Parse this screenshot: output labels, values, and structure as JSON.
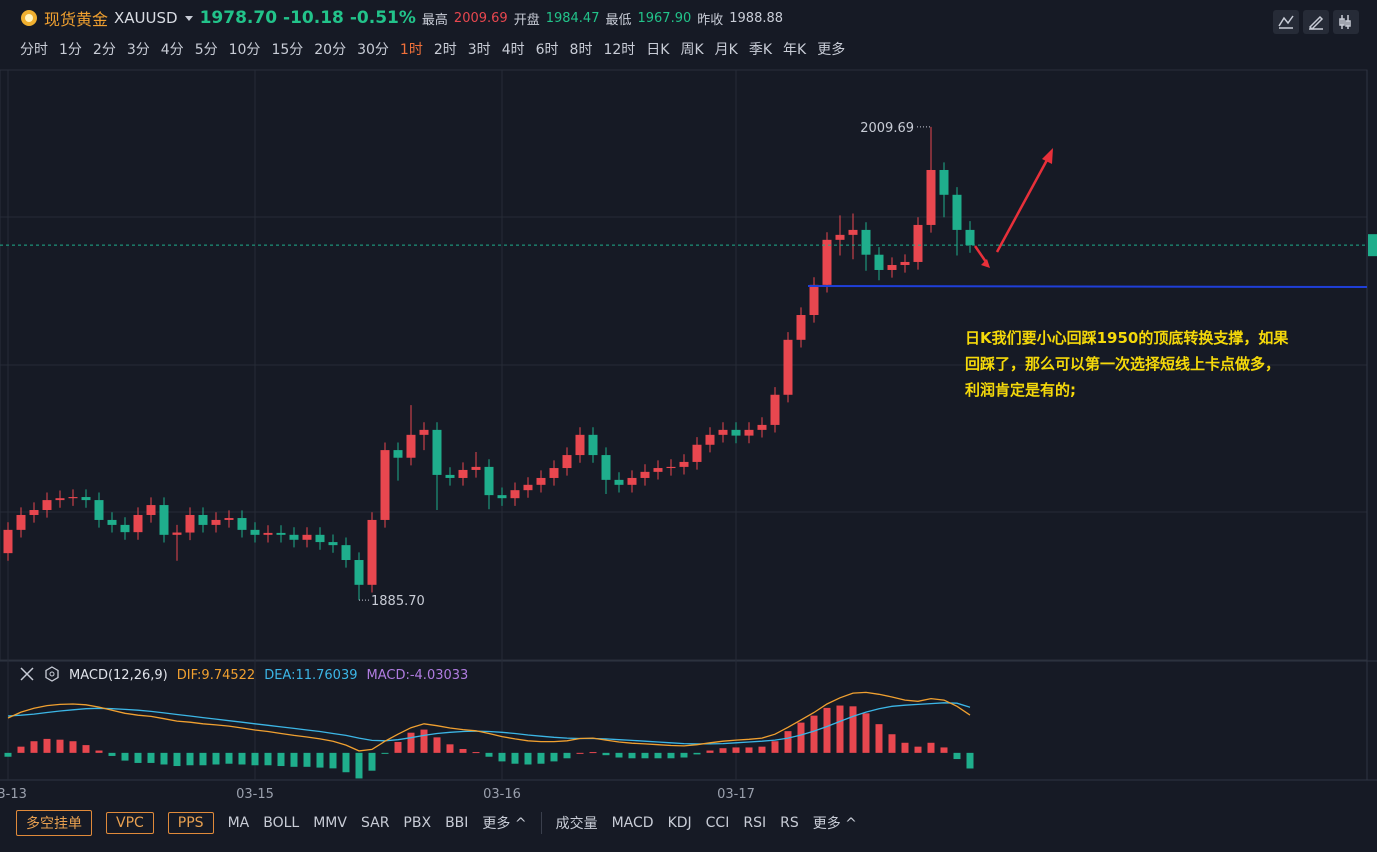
{
  "header": {
    "name": "现货黄金",
    "symbol": "XAUUSD",
    "price": "1978.70",
    "change": "-10.18",
    "change_pct": "-0.51%",
    "stats": [
      {
        "key": "最高",
        "value": "2009.69",
        "dir": "up"
      },
      {
        "key": "开盘",
        "value": "1984.47",
        "dir": "down"
      },
      {
        "key": "最低",
        "value": "1967.90",
        "dir": "down"
      },
      {
        "key": "昨收",
        "value": "1988.88",
        "dir": "none"
      }
    ]
  },
  "timeframes": [
    "分时",
    "1分",
    "2分",
    "3分",
    "4分",
    "5分",
    "10分",
    "15分",
    "20分",
    "30分",
    "1时",
    "2时",
    "3时",
    "4时",
    "6时",
    "8时",
    "12时",
    "日K",
    "周K",
    "月K",
    "季K",
    "年K",
    "更多"
  ],
  "active_timeframe_index": 10,
  "toolbar": {
    "buttons": [
      "多空挂单",
      "VPC",
      "PPS"
    ],
    "main_indicators": [
      "MA",
      "BOLL",
      "MMV",
      "SAR",
      "PBX",
      "BBI",
      "更多 ^"
    ],
    "sub_indicators": [
      "成交量",
      "MACD",
      "KDJ",
      "CCI",
      "RSI",
      "RS",
      "更多 ^"
    ]
  },
  "chart_data": {
    "type": "candlestick",
    "up_color": "#e8474f",
    "down_color": "#1fae8c",
    "ylim": [
      1870.0,
      2024.6
    ],
    "categories": [
      "03-13",
      null,
      null,
      null,
      null,
      null,
      null,
      null,
      null,
      null,
      null,
      null,
      null,
      null,
      null,
      null,
      null,
      null,
      null,
      "03-15",
      null,
      null,
      null,
      null,
      null,
      null,
      null,
      null,
      null,
      null,
      null,
      null,
      null,
      null,
      null,
      null,
      null,
      null,
      "03-16",
      null,
      null,
      null,
      null,
      null,
      null,
      null,
      null,
      null,
      null,
      null,
      null,
      null,
      null,
      null,
      null,
      null,
      "03-17",
      null,
      null,
      null,
      null,
      null,
      null,
      null,
      null,
      null,
      null,
      null,
      null,
      null,
      null,
      null,
      null,
      null,
      null
    ],
    "ohlc": [
      [
        1898,
        1906.1,
        1896,
        1904.1
      ],
      [
        1904.1,
        1910.0,
        1902.1,
        1908.0
      ],
      [
        1908.0,
        1911.3,
        1906.0,
        1909.3
      ],
      [
        1909.3,
        1913.9,
        1907.3,
        1911.9
      ],
      [
        1911.9,
        1914.4,
        1909.9,
        1912.4
      ],
      [
        1912.4,
        1914.7,
        1910.4,
        1912.7
      ],
      [
        1912.7,
        1914.7,
        1909.9,
        1911.9
      ],
      [
        1911.9,
        1913.9,
        1904.7,
        1906.7
      ],
      [
        1906.7,
        1908.7,
        1903.4,
        1905.4
      ],
      [
        1905.4,
        1907.4,
        1901.5,
        1903.5
      ],
      [
        1903.5,
        1910.0,
        1901.5,
        1908.0
      ],
      [
        1908.0,
        1912.6,
        1906.0,
        1910.6
      ],
      [
        1910.6,
        1912.6,
        1900.8,
        1902.8
      ],
      [
        1902.8,
        1905.4,
        1896,
        1903.4
      ],
      [
        1903.4,
        1910.0,
        1901.4,
        1908.0
      ],
      [
        1908.0,
        1910.0,
        1903.4,
        1905.4
      ],
      [
        1905.4,
        1908.7,
        1903.4,
        1906.7
      ],
      [
        1906.7,
        1909.2,
        1904.7,
        1907.2
      ],
      [
        1907.2,
        1909.2,
        1902.1,
        1904.1
      ],
      [
        1904.1,
        1906.1,
        1900.8,
        1902.8
      ],
      [
        1902.8,
        1905.3,
        1900.8,
        1903.3
      ],
      [
        1903.3,
        1905.3,
        1900.8,
        1902.8
      ],
      [
        1902.8,
        1904.8,
        1899.5,
        1901.5
      ],
      [
        1901.5,
        1904.8,
        1899.5,
        1902.8
      ],
      [
        1902.8,
        1904.8,
        1898.9,
        1900.9
      ],
      [
        1900.9,
        1902.9,
        1898.1,
        1900.1
      ],
      [
        1900.1,
        1902.1,
        1894.2,
        1896.2
      ],
      [
        1896.2,
        1898.2,
        1885.7,
        1889.7
      ],
      [
        1889.7,
        1908.7,
        1887.7,
        1906.7
      ],
      [
        1906.7,
        1927.0,
        1904.7,
        1925.0
      ],
      [
        1925.0,
        1927.0,
        1917,
        1923.0
      ],
      [
        1923.0,
        1936.8,
        1921,
        1929.0
      ],
      [
        1929.0,
        1932.3,
        1925,
        1930.3
      ],
      [
        1930.3,
        1932.3,
        1909.3,
        1918.5
      ],
      [
        1918.5,
        1920.5,
        1915.7,
        1917.7
      ],
      [
        1917.7,
        1921.8,
        1915.7,
        1919.8
      ],
      [
        1919.8,
        1924.5,
        1917.8,
        1920.6
      ],
      [
        1920.6,
        1922.6,
        1909.5,
        1913.2
      ],
      [
        1913.2,
        1915.2,
        1910.4,
        1912.4
      ],
      [
        1912.4,
        1916.5,
        1910.4,
        1914.5
      ],
      [
        1914.5,
        1917.9,
        1912.5,
        1915.9
      ],
      [
        1915.9,
        1919.7,
        1913.9,
        1917.7
      ],
      [
        1917.7,
        1922.3,
        1915.7,
        1920.3
      ],
      [
        1920.3,
        1925.7,
        1918.3,
        1923.7
      ],
      [
        1923.7,
        1931.0,
        1921.7,
        1929.0
      ],
      [
        1929.0,
        1931.0,
        1921.7,
        1923.7
      ],
      [
        1923.7,
        1925.7,
        1913.5,
        1917.2
      ],
      [
        1917.2,
        1919.2,
        1913.9,
        1915.9
      ],
      [
        1915.9,
        1919.7,
        1913.9,
        1917.7
      ],
      [
        1917.7,
        1921.3,
        1915.7,
        1919.3
      ],
      [
        1919.3,
        1922.3,
        1917.3,
        1920.3
      ],
      [
        1920.3,
        1922.6,
        1918.3,
        1920.6
      ],
      [
        1920.6,
        1923.9,
        1918.6,
        1921.9
      ],
      [
        1921.9,
        1928.4,
        1919.9,
        1926.4
      ],
      [
        1926.4,
        1931.0,
        1924.4,
        1929.0
      ],
      [
        1929.0,
        1932.3,
        1927.0,
        1930.3
      ],
      [
        1930.3,
        1932.3,
        1926.8,
        1928.8
      ],
      [
        1928.8,
        1932.3,
        1926.8,
        1930.3
      ],
      [
        1930.3,
        1933.6,
        1928.3,
        1931.6
      ],
      [
        1931.6,
        1941.5,
        1929.6,
        1939.5
      ],
      [
        1939.5,
        1955.9,
        1937.5,
        1953.9
      ],
      [
        1953.9,
        1962.4,
        1951.9,
        1960.4
      ],
      [
        1960.4,
        1970.3,
        1958.4,
        1968.3
      ],
      [
        1968.3,
        1982.1,
        1966.3,
        1980.1
      ],
      [
        1980.1,
        1986.5,
        1976,
        1981.4
      ],
      [
        1981.4,
        1987.0,
        1975,
        1982.7
      ],
      [
        1982.7,
        1984.7,
        1972,
        1976.2
      ],
      [
        1976.2,
        1978.2,
        1969.5,
        1972.2
      ],
      [
        1972.2,
        1975.5,
        1970.2,
        1973.5
      ],
      [
        1973.5,
        1976.3,
        1971.5,
        1974.3
      ],
      [
        1974.3,
        1986.0,
        1972.3,
        1984.0
      ],
      [
        1984.0,
        2009.69,
        1982,
        1998.4
      ],
      [
        1998.4,
        2000.4,
        1986,
        1991.9
      ],
      [
        1991.9,
        1993.9,
        1976,
        1982.7
      ],
      [
        1982.7,
        1985,
        1976.7,
        1978.7
      ]
    ],
    "max_label": "2009.69",
    "min_label": "1885.70",
    "support_level": 1968.0,
    "support_color": "#1f3fd8",
    "annotation": [
      "日K我们要小心回踩1950的顶底转换支撑，如果",
      "回踩了，那么可以第一次选择短线上卡点做多，",
      "利润肯定是有的;"
    ],
    "macd": {
      "title": "MACD(12,26,9)",
      "ylim": [
        -7,
        17.5
      ],
      "legend": [
        {
          "text": "DIF:9.74522",
          "color": "#f0a030"
        },
        {
          "text": "DEA:11.76039",
          "color": "#3cb6e6"
        },
        {
          "text": "MACD:-4.03033",
          "color": "#b07ce0"
        }
      ],
      "dif": [
        9.0,
        10.5,
        11.5,
        12.2,
        12.5,
        12.6,
        12.4,
        11.8,
        11.0,
        10.2,
        9.7,
        9.4,
        8.8,
        8.2,
        7.9,
        7.5,
        7.2,
        6.9,
        6.4,
        5.9,
        5.5,
        5.0,
        4.5,
        4.1,
        3.6,
        3.0,
        2.0,
        0.5,
        0.9,
        3.0,
        4.8,
        6.5,
        7.5,
        7.0,
        6.4,
        6.0,
        5.7,
        5.0,
        4.2,
        3.6,
        3.1,
        2.9,
        2.9,
        3.1,
        3.7,
        3.8,
        3.3,
        2.8,
        2.5,
        2.3,
        2.1,
        1.9,
        1.8,
        2.1,
        2.6,
        3.0,
        3.3,
        3.5,
        3.8,
        4.8,
        6.6,
        8.5,
        10.4,
        12.6,
        14.2,
        15.4,
        15.6,
        15.1,
        14.4,
        13.6,
        13.3,
        14.0,
        13.6,
        12.0,
        9.74522
      ],
      "dea": [
        9.5,
        9.7,
        10.0,
        10.4,
        10.8,
        11.1,
        11.4,
        11.5,
        11.4,
        11.2,
        11.0,
        10.7,
        10.3,
        9.9,
        9.5,
        9.1,
        8.7,
        8.3,
        7.9,
        7.5,
        7.1,
        6.7,
        6.3,
        5.9,
        5.5,
        5.0,
        4.5,
        3.8,
        3.2,
        3.1,
        3.4,
        3.9,
        4.5,
        5.0,
        5.3,
        5.5,
        5.6,
        5.5,
        5.3,
        5.0,
        4.6,
        4.3,
        4.0,
        3.8,
        3.7,
        3.7,
        3.6,
        3.4,
        3.2,
        3.0,
        2.8,
        2.6,
        2.4,
        2.3,
        2.3,
        2.4,
        2.6,
        2.8,
        3.0,
        3.3,
        3.8,
        4.6,
        5.6,
        6.8,
        8.1,
        9.4,
        10.5,
        11.4,
        12.0,
        12.3,
        12.5,
        12.7,
        12.9,
        12.8,
        11.76039
      ],
      "hist": [
        -1.0,
        1.6,
        3.0,
        3.6,
        3.4,
        3.0,
        2.0,
        0.6,
        -0.8,
        -2.0,
        -2.6,
        -2.6,
        -3.0,
        -3.4,
        -3.2,
        -3.2,
        -3.0,
        -2.8,
        -3.0,
        -3.2,
        -3.2,
        -3.4,
        -3.6,
        -3.6,
        -3.8,
        -4.0,
        -5.0,
        -6.6,
        -4.6,
        -0.2,
        2.8,
        5.2,
        6.0,
        4.0,
        2.2,
        1.0,
        0.2,
        -1.0,
        -2.2,
        -2.8,
        -3.0,
        -2.8,
        -2.2,
        -1.4,
        0,
        0.2,
        -0.6,
        -1.2,
        -1.4,
        -1.4,
        -1.4,
        -1.4,
        -1.2,
        -0.4,
        0.6,
        1.2,
        1.4,
        1.4,
        1.6,
        3.0,
        5.6,
        7.8,
        9.6,
        11.6,
        12.2,
        12.0,
        10.2,
        7.4,
        4.8,
        2.6,
        1.6,
        2.6,
        1.4,
        -1.6,
        -4.03033
      ]
    }
  }
}
